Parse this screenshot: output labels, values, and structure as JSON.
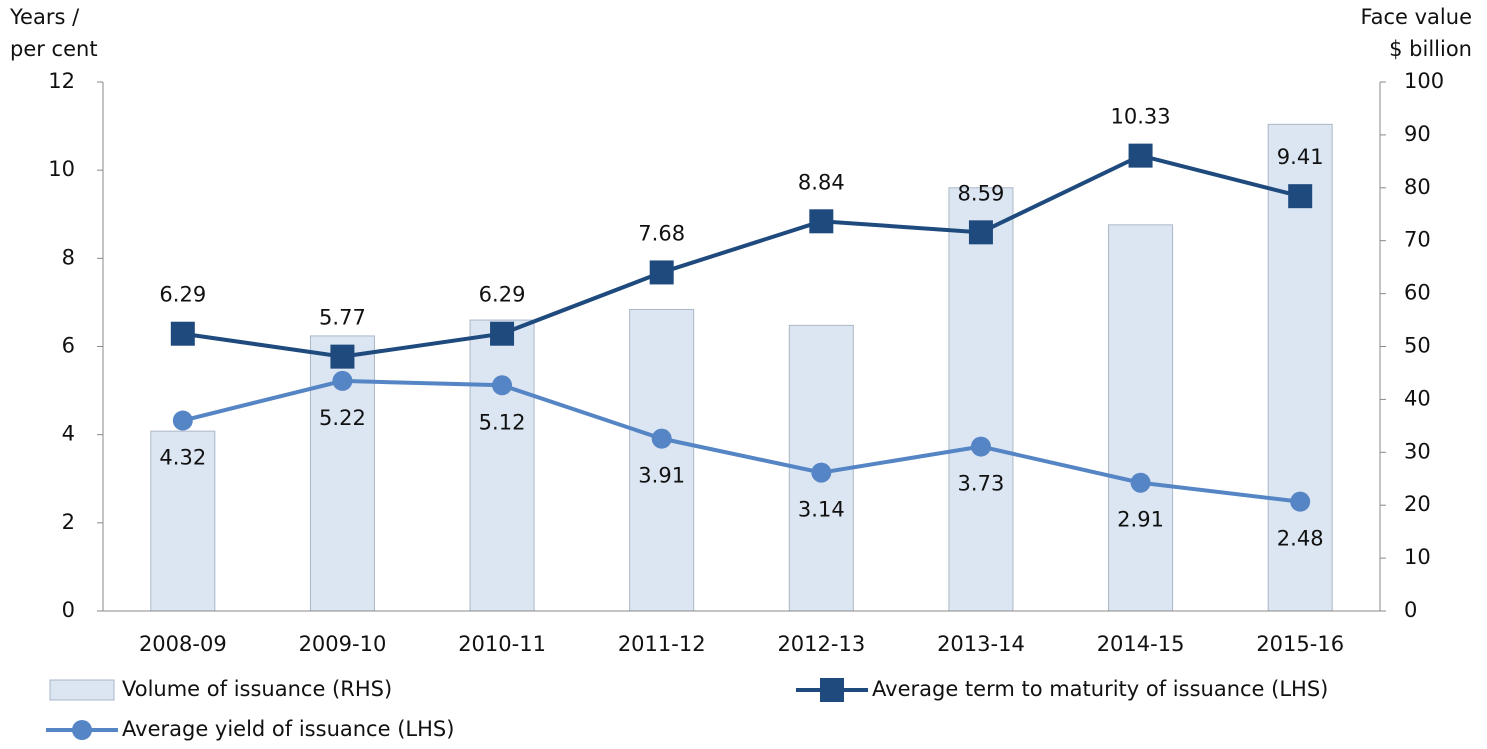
{
  "chart_data": {
    "type": "combo",
    "y_label": [
      "Years /",
      "per cent"
    ],
    "y2_label": [
      "Face value",
      "$ billion"
    ],
    "categories": [
      "2008-09",
      "2009-10",
      "2010-11",
      "2011-12",
      "2012-13",
      "2013-14",
      "2014-15",
      "2015-16"
    ],
    "ylim": [
      0,
      12
    ],
    "yticks": [
      0,
      2,
      4,
      6,
      8,
      10,
      12
    ],
    "y2lim": [
      0,
      100
    ],
    "y2ticks": [
      0,
      10,
      20,
      30,
      40,
      50,
      60,
      70,
      80,
      90,
      100
    ],
    "series": [
      {
        "name": "Volume of issuance (RHS)",
        "type": "bar",
        "axis": "y2",
        "color": "#dce6f2",
        "values": [
          34,
          52,
          55,
          57,
          54,
          80,
          73,
          92
        ]
      },
      {
        "name": "Average term to maturity of issuance (LHS)",
        "type": "line",
        "marker": "square",
        "color": "#1f4a7e",
        "values": [
          6.29,
          5.77,
          6.29,
          7.68,
          8.84,
          8.59,
          10.33,
          9.41
        ]
      },
      {
        "name": "Average yield of issuance (LHS)",
        "type": "line",
        "marker": "circle",
        "color": "#5585c5",
        "values": [
          4.32,
          5.22,
          5.12,
          3.91,
          3.14,
          3.73,
          2.91,
          2.48
        ]
      }
    ]
  }
}
